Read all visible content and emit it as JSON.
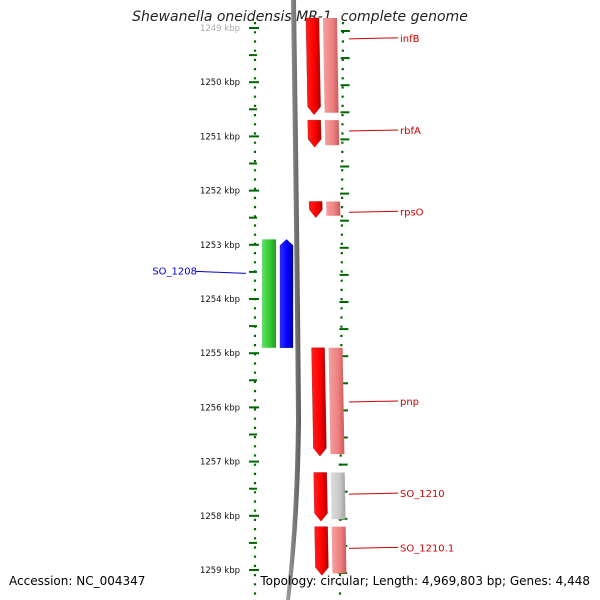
{
  "title": "Shewanella oneidensis MR-1, complete genome",
  "footer": {
    "accession": "Accession: NC_004347",
    "summary": "Topology: circular; Length: 4,969,803 bp; Genes: 4,448"
  },
  "scale": {
    "unit": "kbp",
    "ticks": [
      {
        "label": "1249 kbp",
        "kbp": 1249
      },
      {
        "label": "1250 kbp",
        "kbp": 1250
      },
      {
        "label": "1251 kbp",
        "kbp": 1251
      },
      {
        "label": "1252 kbp",
        "kbp": 1252
      },
      {
        "label": "1253 kbp",
        "kbp": 1253
      },
      {
        "label": "1254 kbp",
        "kbp": 1254
      },
      {
        "label": "1255 kbp",
        "kbp": 1255
      },
      {
        "label": "1256 kbp",
        "kbp": 1256
      },
      {
        "label": "1257 kbp",
        "kbp": 1257
      },
      {
        "label": "1258 kbp",
        "kbp": 1258
      },
      {
        "label": "1259 kbp",
        "kbp": 1259
      }
    ]
  },
  "colors": {
    "forward_gene": "#ff0000",
    "forward_gene_pale": "#f08080",
    "pseudo_gene": "#c0c0c0",
    "reverse_gene": "#0000ff",
    "reverse_cds": "#33cc33",
    "forward_label": "#cc0000",
    "reverse_label": "#0000cc",
    "backbone": "#808080",
    "ruler": "#006600"
  },
  "genes": [
    {
      "name": "infB",
      "strand": "+",
      "start_kbp": 1248.8,
      "end_kbp": 1250.6,
      "label_kbp": 1249.2,
      "cds_color": "pale"
    },
    {
      "name": "rbfA",
      "strand": "+",
      "start_kbp": 1250.7,
      "end_kbp": 1251.2,
      "label_kbp": 1250.9,
      "cds_color": "pale"
    },
    {
      "name": "rpsO",
      "strand": "+",
      "start_kbp": 1252.2,
      "end_kbp": 1252.5,
      "label_kbp": 1252.4,
      "cds_color": "pale"
    },
    {
      "name": "SO_1208",
      "strand": "-",
      "start_kbp": 1252.9,
      "end_kbp": 1254.9,
      "label_kbp": 1253.6,
      "cds_color": "green"
    },
    {
      "name": "pnp",
      "strand": "+",
      "start_kbp": 1254.9,
      "end_kbp": 1256.9,
      "label_kbp": 1255.9,
      "cds_color": "pale"
    },
    {
      "name": "SO_1210",
      "strand": "+",
      "start_kbp": 1257.2,
      "end_kbp": 1258.1,
      "label_kbp": 1257.6,
      "cds_color": "gray"
    },
    {
      "name": "SO_1210.1",
      "strand": "+",
      "start_kbp": 1258.2,
      "end_kbp": 1259.1,
      "label_kbp": 1258.6,
      "cds_color": "pale"
    }
  ]
}
